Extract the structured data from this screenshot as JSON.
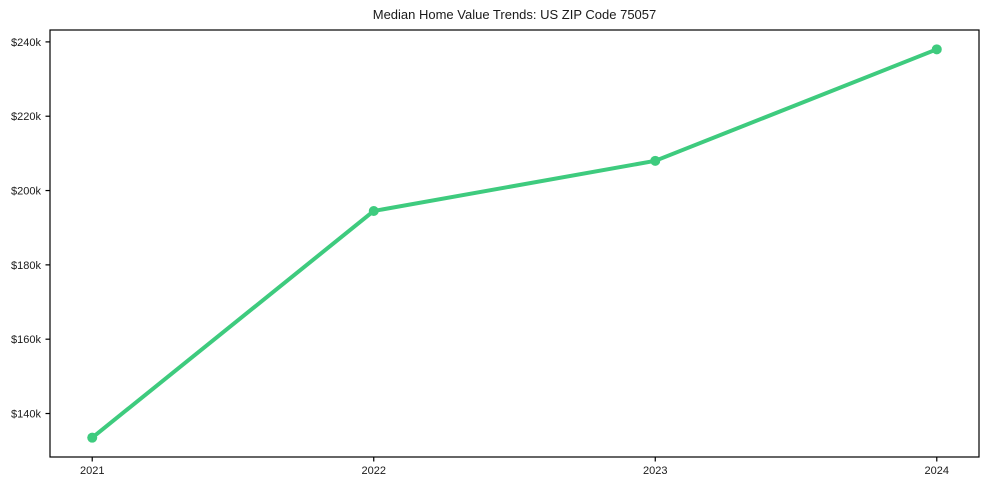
{
  "title": "Median Home Value Trends: US ZIP Code 75057",
  "chart_data": {
    "type": "line",
    "title": "Median Home Value Trends: US ZIP Code 75057",
    "x": [
      2021,
      2022,
      2023,
      2024
    ],
    "series": [
      {
        "name": "Median Home Value",
        "values": [
          133500,
          194500,
          208000,
          238000
        ]
      }
    ],
    "xlabel": "",
    "ylabel": "",
    "xlim": [
      2020.85,
      2024.15
    ],
    "ylim": [
      128300,
      243200
    ],
    "x_ticks": [
      {
        "value": 2021,
        "label": "2021"
      },
      {
        "value": 2022,
        "label": "2022"
      },
      {
        "value": 2023,
        "label": "2023"
      },
      {
        "value": 2024,
        "label": "2024"
      }
    ],
    "y_ticks": [
      {
        "value": 140000,
        "label": "$140k"
      },
      {
        "value": 160000,
        "label": "$160k"
      },
      {
        "value": 180000,
        "label": "$180k"
      },
      {
        "value": 200000,
        "label": "$200k"
      },
      {
        "value": 220000,
        "label": "$220k"
      },
      {
        "value": 240000,
        "label": "$240k"
      }
    ],
    "grid": false,
    "legend": "none",
    "line_color": "#3ecb7e",
    "marker": "circle",
    "marker_color": "#3ecb7e",
    "line_width": 4,
    "marker_radius": 5,
    "background_color": "#ffffff",
    "spine_color": "#000000",
    "text_color": "#1a1a1a"
  }
}
